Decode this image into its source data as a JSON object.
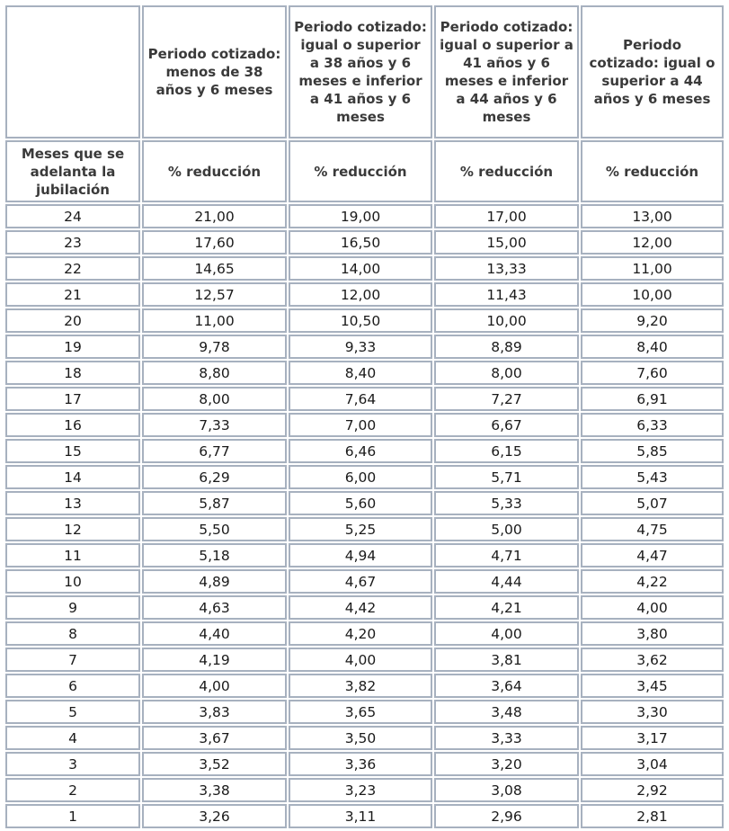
{
  "header": {
    "corner": "",
    "periods": [
      "Periodo cotizado: menos de 38 años y 6 meses",
      "Periodo cotizado: igual o superior a 38 años y 6 meses e inferior a 41 años y 6 meses",
      "Periodo cotizado: igual o superior a 41 años y 6 meses e inferior a 44 años y 6 meses",
      "Periodo cotizado: igual o superior a 44 años y 6 meses"
    ],
    "row_label": "Meses que se adelanta la jubilación",
    "sub": [
      "% reducción",
      "% reducción",
      "% reducción",
      "% reducción"
    ]
  },
  "rows": [
    [
      "24",
      "21,00",
      "19,00",
      "17,00",
      "13,00"
    ],
    [
      "23",
      "17,60",
      "16,50",
      "15,00",
      "12,00"
    ],
    [
      "22",
      "14,65",
      "14,00",
      "13,33",
      "11,00"
    ],
    [
      "21",
      "12,57",
      "12,00",
      "11,43",
      "10,00"
    ],
    [
      "20",
      "11,00",
      "10,50",
      "10,00",
      "9,20"
    ],
    [
      "19",
      "9,78",
      "9,33",
      "8,89",
      "8,40"
    ],
    [
      "18",
      "8,80",
      "8,40",
      "8,00",
      "7,60"
    ],
    [
      "17",
      "8,00",
      "7,64",
      "7,27",
      "6,91"
    ],
    [
      "16",
      "7,33",
      "7,00",
      "6,67",
      "6,33"
    ],
    [
      "15",
      "6,77",
      "6,46",
      "6,15",
      "5,85"
    ],
    [
      "14",
      "6,29",
      "6,00",
      "5,71",
      "5,43"
    ],
    [
      "13",
      "5,87",
      "5,60",
      "5,33",
      "5,07"
    ],
    [
      "12",
      "5,50",
      "5,25",
      "5,00",
      "4,75"
    ],
    [
      "11",
      "5,18",
      "4,94",
      "4,71",
      "4,47"
    ],
    [
      "10",
      "4,89",
      "4,67",
      "4,44",
      "4,22"
    ],
    [
      "9",
      "4,63",
      "4,42",
      "4,21",
      "4,00"
    ],
    [
      "8",
      "4,40",
      "4,20",
      "4,00",
      "3,80"
    ],
    [
      "7",
      "4,19",
      "4,00",
      "3,81",
      "3,62"
    ],
    [
      "6",
      "4,00",
      "3,82",
      "3,64",
      "3,45"
    ],
    [
      "5",
      "3,83",
      "3,65",
      "3,48",
      "3,30"
    ],
    [
      "4",
      "3,67",
      "3,50",
      "3,33",
      "3,17"
    ],
    [
      "3",
      "3,52",
      "3,36",
      "3,20",
      "3,04"
    ],
    [
      "2",
      "3,38",
      "3,23",
      "3,08",
      "2,92"
    ],
    [
      "1",
      "3,26",
      "3,11",
      "2,96",
      "2,81"
    ]
  ]
}
